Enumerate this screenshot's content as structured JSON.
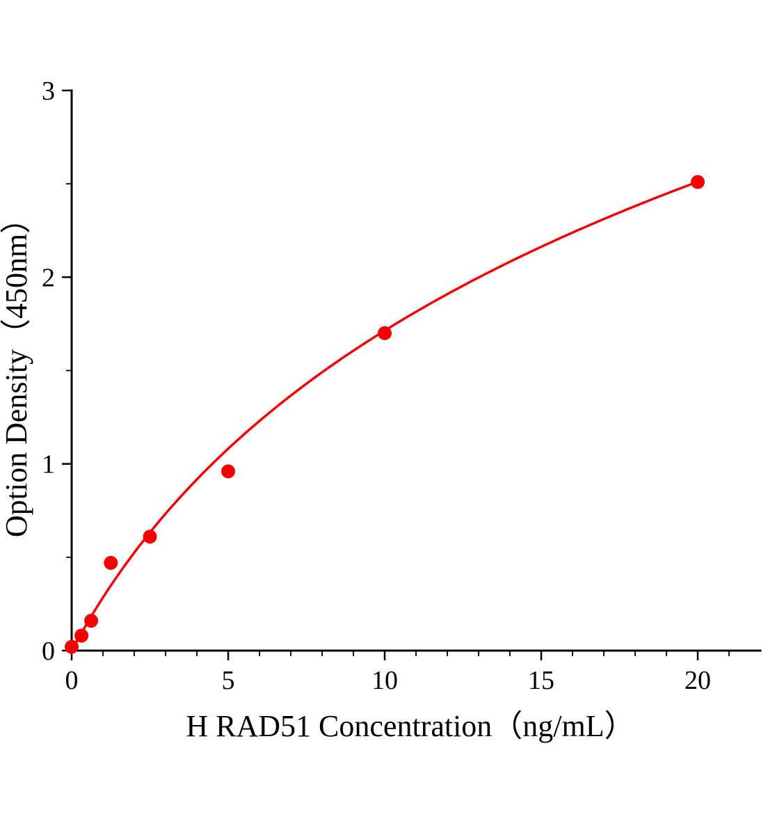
{
  "chart_data": {
    "type": "scatter",
    "title": "",
    "xlabel": "H RAD51 Concentration（ng/mL）",
    "ylabel": "Option Density（450nm）",
    "x": [
      0,
      0.313,
      0.625,
      1.25,
      2.5,
      5,
      10,
      20
    ],
    "y": [
      0.02,
      0.08,
      0.16,
      0.47,
      0.61,
      0.96,
      1.7,
      2.51
    ],
    "xlim": [
      0,
      22
    ],
    "ylim": [
      0,
      3
    ],
    "xticks": [
      0,
      5,
      10,
      15,
      20
    ],
    "yticks": [
      0,
      1,
      2,
      3
    ],
    "x_minor_step": 1,
    "y_minor_step": 0.5,
    "grid": false,
    "legend_position": "none",
    "marker_color": "#f40000",
    "line_color": "#f40000",
    "axis_color": "#000000",
    "fit": {
      "type": "log",
      "formula": "y = A*ln(1 + x/t)",
      "A": 1.56,
      "t": 5
    }
  }
}
